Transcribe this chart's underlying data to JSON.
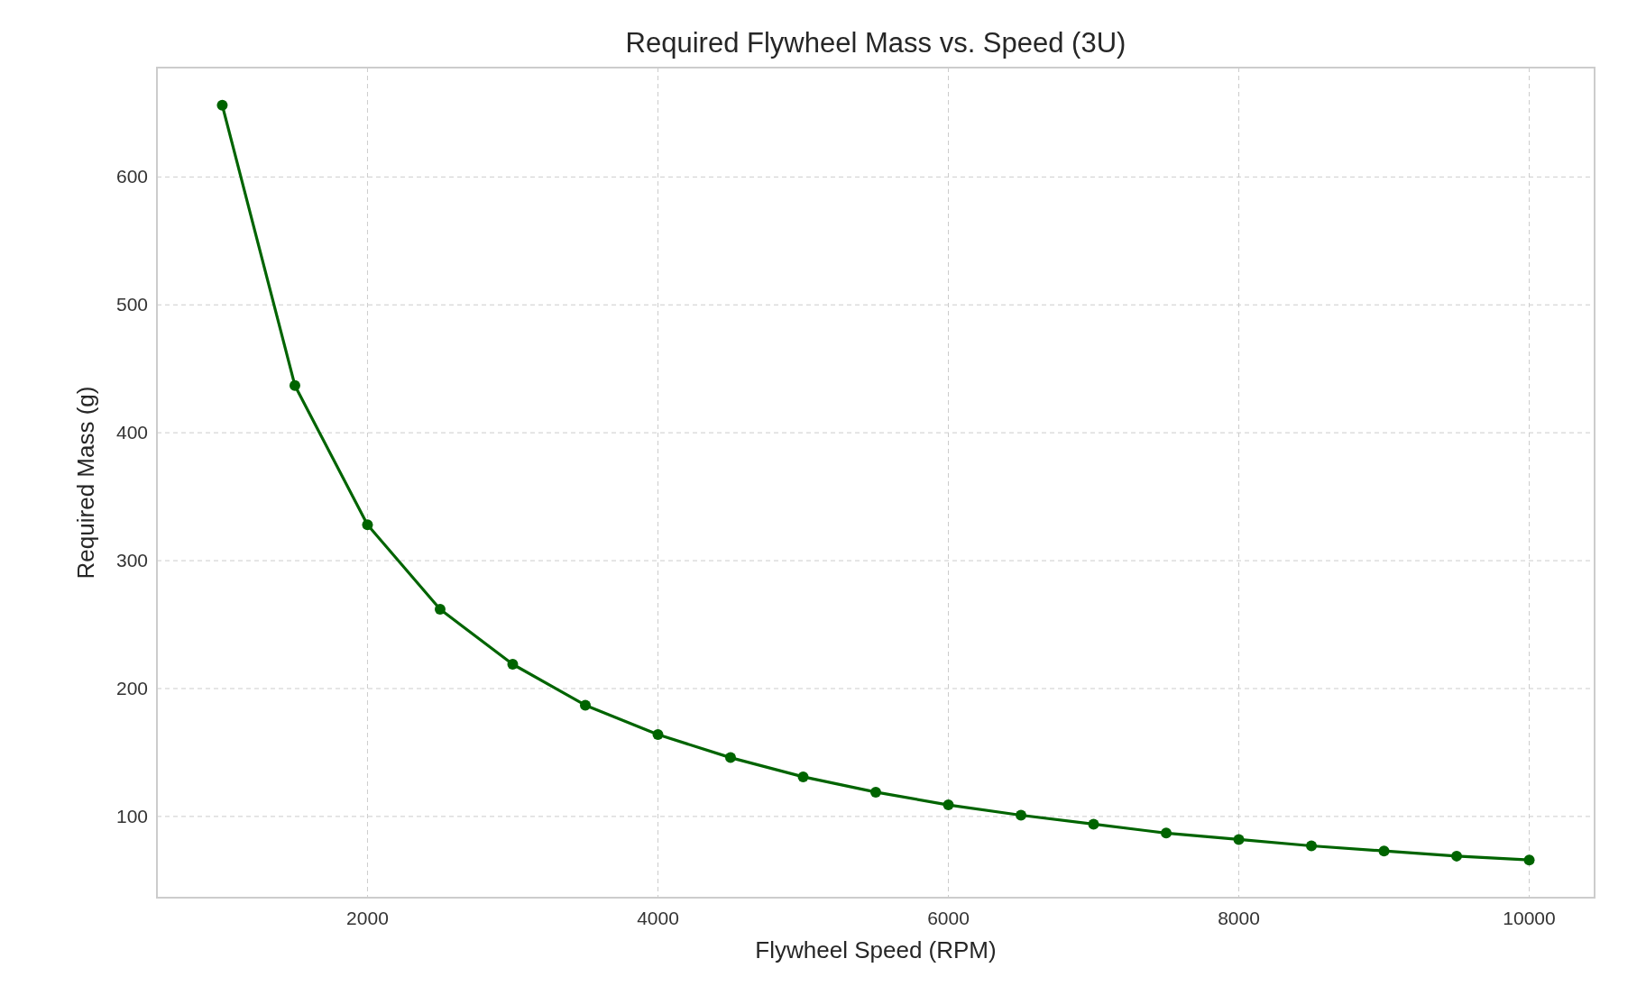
{
  "chart_data": {
    "type": "line",
    "title": "Required Flywheel Mass vs. Speed (3U)",
    "xlabel": "Flywheel Speed (RPM)",
    "ylabel": "Required Mass (g)",
    "x": [
      1000,
      1500,
      2000,
      2500,
      3000,
      3500,
      4000,
      4500,
      5000,
      5500,
      6000,
      6500,
      7000,
      7500,
      8000,
      8500,
      9000,
      9500,
      10000
    ],
    "series": [
      {
        "color": "#006400",
        "values": [
          656,
          437,
          328,
          262,
          219,
          187,
          164,
          146,
          131,
          119,
          109,
          101,
          94,
          87,
          82,
          77,
          73,
          69,
          66
        ]
      }
    ],
    "xlim": [
      550,
      10450
    ],
    "xticks": [
      2000,
      4000,
      6000,
      8000,
      10000
    ],
    "ylim": [
      36.5,
      685.5
    ],
    "yticks": [
      100,
      200,
      300,
      400,
      500,
      600
    ],
    "grid": true,
    "marker": "circle",
    "line_style": "solid"
  }
}
